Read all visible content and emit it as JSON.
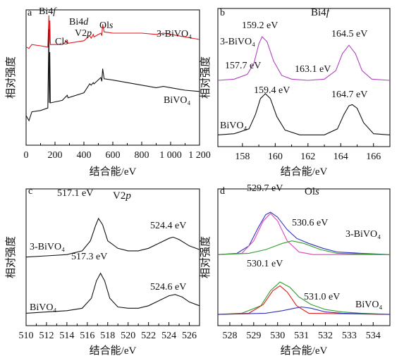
{
  "chart_data": [
    {
      "panel": "a",
      "type": "line",
      "xlabel": "结合能/eV",
      "ylabel": "相对强度",
      "xlim": [
        0,
        1200
      ],
      "xticks": [
        "0",
        "200",
        "400",
        "600",
        "800",
        "1 000",
        "1 200"
      ],
      "annotations": [
        {
          "text": "Bi4f",
          "x": 160
        },
        {
          "text": "Cls",
          "x": 285
        },
        {
          "text": "Bi4d",
          "x": 440
        },
        {
          "text": "V2p",
          "x": 517
        },
        {
          "text": "Ols",
          "x": 530
        }
      ],
      "series": [
        {
          "name": "3-BiVO₄",
          "color": "#e0191d",
          "points": [
            [
              0,
              0.74
            ],
            [
              20,
              0.73
            ],
            [
              40,
              0.76
            ],
            [
              100,
              0.75
            ],
            [
              150,
              0.74
            ],
            [
              158,
              0.99
            ],
            [
              160,
              0.77
            ],
            [
              164,
              0.95
            ],
            [
              168,
              0.76
            ],
            [
              250,
              0.76
            ],
            [
              285,
              0.79
            ],
            [
              290,
              0.77
            ],
            [
              400,
              0.79
            ],
            [
              440,
              0.83
            ],
            [
              450,
              0.81
            ],
            [
              465,
              0.84
            ],
            [
              470,
              0.82
            ],
            [
              517,
              0.85
            ],
            [
              524,
              0.83
            ],
            [
              530,
              0.92
            ],
            [
              540,
              0.86
            ],
            [
              600,
              0.85
            ],
            [
              700,
              0.85
            ],
            [
              800,
              0.85
            ],
            [
              900,
              0.84
            ],
            [
              950,
              0.85
            ],
            [
              1000,
              0.84
            ],
            [
              1100,
              0.82
            ],
            [
              1200,
              0.8
            ]
          ]
        },
        {
          "name": "BiVO₄",
          "color": "#111111",
          "points": [
            [
              0,
              0.2
            ],
            [
              20,
              0.16
            ],
            [
              40,
              0.23
            ],
            [
              100,
              0.24
            ],
            [
              150,
              0.26
            ],
            [
              158,
              0.88
            ],
            [
              160,
              0.3
            ],
            [
              164,
              0.7
            ],
            [
              168,
              0.3
            ],
            [
              250,
              0.32
            ],
            [
              285,
              0.36
            ],
            [
              290,
              0.34
            ],
            [
              400,
              0.38
            ],
            [
              440,
              0.45
            ],
            [
              450,
              0.44
            ],
            [
              465,
              0.46
            ],
            [
              470,
              0.45
            ],
            [
              517,
              0.5
            ],
            [
              524,
              0.47
            ],
            [
              530,
              0.57
            ],
            [
              540,
              0.49
            ],
            [
              600,
              0.48
            ],
            [
              700,
              0.46
            ],
            [
              800,
              0.44
            ],
            [
              900,
              0.42
            ],
            [
              950,
              0.43
            ],
            [
              1000,
              0.42
            ],
            [
              1100,
              0.4
            ],
            [
              1200,
              0.39
            ]
          ]
        }
      ]
    },
    {
      "panel": "b",
      "type": "line",
      "title": "Bi4f",
      "xlabel": "结合能/eV",
      "ylabel": "相对强度",
      "xlim": [
        156.5,
        167
      ],
      "xticks": [
        "158",
        "160",
        "162",
        "164",
        "166"
      ],
      "annotations": [
        {
          "text": "159.2 eV",
          "x": 159.2
        },
        {
          "text": "164.5 eV",
          "x": 164.5
        },
        {
          "text": "157.7 eV",
          "x": 157.7
        },
        {
          "text": "163.1 eV",
          "x": 163.1
        },
        {
          "text": "159.4 eV",
          "x": 159.4
        },
        {
          "text": "164.7 eV",
          "x": 164.7
        }
      ],
      "series": [
        {
          "name": "3-BiVO₄",
          "color": "#b040c0",
          "points": [
            [
              156.5,
              0.5
            ],
            [
              157.5,
              0.51
            ],
            [
              158.3,
              0.55
            ],
            [
              158.7,
              0.64
            ],
            [
              159.0,
              0.8
            ],
            [
              159.2,
              0.86
            ],
            [
              159.5,
              0.82
            ],
            [
              159.9,
              0.66
            ],
            [
              160.4,
              0.54
            ],
            [
              161.0,
              0.51
            ],
            [
              162.0,
              0.5
            ],
            [
              163.0,
              0.51
            ],
            [
              163.7,
              0.58
            ],
            [
              164.1,
              0.72
            ],
            [
              164.5,
              0.79
            ],
            [
              164.9,
              0.72
            ],
            [
              165.3,
              0.58
            ],
            [
              165.9,
              0.51
            ],
            [
              167.0,
              0.5
            ]
          ]
        },
        {
          "name": "BiVO₄",
          "color": "#111111",
          "points": [
            [
              156.5,
              0.05
            ],
            [
              157.5,
              0.06
            ],
            [
              158.4,
              0.1
            ],
            [
              158.8,
              0.22
            ],
            [
              159.1,
              0.35
            ],
            [
              159.4,
              0.39
            ],
            [
              159.7,
              0.35
            ],
            [
              160.1,
              0.2
            ],
            [
              160.6,
              0.09
            ],
            [
              161.5,
              0.05
            ],
            [
              163.0,
              0.05
            ],
            [
              163.8,
              0.1
            ],
            [
              164.2,
              0.22
            ],
            [
              164.5,
              0.29
            ],
            [
              164.7,
              0.3
            ],
            [
              165.0,
              0.27
            ],
            [
              165.4,
              0.15
            ],
            [
              166.0,
              0.06
            ],
            [
              167.0,
              0.05
            ]
          ]
        }
      ]
    },
    {
      "panel": "c",
      "type": "line",
      "title": "V2p",
      "xlabel": "结合能/eV",
      "ylabel": "相对强度",
      "xlim": [
        510,
        527
      ],
      "xticks": [
        "510",
        "512",
        "514",
        "516",
        "518",
        "520",
        "522",
        "524",
        "526"
      ],
      "annotations": [
        {
          "text": "517.1 eV",
          "x": 517.1
        },
        {
          "text": "524.4 eV",
          "x": 524.4
        },
        {
          "text": "517.3 eV",
          "x": 517.3
        },
        {
          "text": "524.6 eV",
          "x": 524.6
        }
      ],
      "series": [
        {
          "name": "3-BiVO₄",
          "color": "#111111",
          "points": [
            [
              510,
              0.51
            ],
            [
              512,
              0.52
            ],
            [
              514,
              0.53
            ],
            [
              515.5,
              0.56
            ],
            [
              516.3,
              0.64
            ],
            [
              516.8,
              0.76
            ],
            [
              517.1,
              0.82
            ],
            [
              517.5,
              0.77
            ],
            [
              518.0,
              0.64
            ],
            [
              519.0,
              0.58
            ],
            [
              520.0,
              0.56
            ],
            [
              521.0,
              0.56
            ],
            [
              522.0,
              0.58
            ],
            [
              523.0,
              0.62
            ],
            [
              524.0,
              0.66
            ],
            [
              524.4,
              0.67
            ],
            [
              525.0,
              0.65
            ],
            [
              526.0,
              0.6
            ],
            [
              527,
              0.57
            ]
          ]
        },
        {
          "name": "BiVO₄",
          "color": "#111111",
          "points": [
            [
              510,
              0.06
            ],
            [
              512,
              0.07
            ],
            [
              514,
              0.08
            ],
            [
              515.5,
              0.1
            ],
            [
              516.4,
              0.18
            ],
            [
              516.9,
              0.32
            ],
            [
              517.3,
              0.38
            ],
            [
              517.7,
              0.32
            ],
            [
              518.2,
              0.18
            ],
            [
              519.0,
              0.11
            ],
            [
              520.0,
              0.1
            ],
            [
              521.0,
              0.1
            ],
            [
              522.0,
              0.12
            ],
            [
              523.0,
              0.16
            ],
            [
              524.0,
              0.2
            ],
            [
              524.6,
              0.21
            ],
            [
              525.3,
              0.19
            ],
            [
              526.0,
              0.15
            ],
            [
              527,
              0.12
            ]
          ]
        }
      ]
    },
    {
      "panel": "d",
      "type": "line",
      "title": "Ols",
      "xlabel": "结合能/eV",
      "ylabel": "相对强度",
      "xlim": [
        527.5,
        534.7
      ],
      "xticks": [
        "528",
        "529",
        "530",
        "531",
        "532",
        "533",
        "534"
      ],
      "annotations": [
        {
          "text": "529.7 eV",
          "x": 529.7
        },
        {
          "text": "530.6 eV",
          "x": 530.6
        },
        {
          "text": "530.1 eV",
          "x": 530.1
        },
        {
          "text": "531.0 eV",
          "x": 531.0
        }
      ],
      "series": [
        {
          "name": "3-BiVO₄",
          "color": "#3030c0",
          "points": [
            [
              527.5,
              0.53
            ],
            [
              528.3,
              0.54
            ],
            [
              528.8,
              0.6
            ],
            [
              529.2,
              0.75
            ],
            [
              529.5,
              0.85
            ],
            [
              529.7,
              0.87
            ],
            [
              530.0,
              0.83
            ],
            [
              530.4,
              0.73
            ],
            [
              530.8,
              0.66
            ],
            [
              531.3,
              0.62
            ],
            [
              531.9,
              0.58
            ],
            [
              532.5,
              0.55
            ],
            [
              533.5,
              0.54
            ],
            [
              534.7,
              0.53
            ]
          ]
        },
        {
          "name": "3-BiVO₄ (fit 529.7 eV)",
          "color": "#e040c0",
          "points": [
            [
              527.5,
              0.53
            ],
            [
              528.5,
              0.54
            ],
            [
              529.0,
              0.64
            ],
            [
              529.4,
              0.8
            ],
            [
              529.7,
              0.86
            ],
            [
              530.0,
              0.8
            ],
            [
              530.4,
              0.64
            ],
            [
              530.9,
              0.55
            ],
            [
              531.5,
              0.53
            ],
            [
              534.7,
              0.53
            ]
          ]
        },
        {
          "name": "3-BiVO₄ (fit 530.6 eV)",
          "color": "#30a030",
          "points": [
            [
              527.5,
              0.53
            ],
            [
              528.8,
              0.54
            ],
            [
              529.5,
              0.57
            ],
            [
              530.2,
              0.62
            ],
            [
              530.6,
              0.64
            ],
            [
              531.1,
              0.62
            ],
            [
              531.8,
              0.57
            ],
            [
              532.5,
              0.54
            ],
            [
              534.7,
              0.53
            ]
          ]
        },
        {
          "name": "BiVO₄",
          "color": "#30a030",
          "points": [
            [
              527.5,
              0.05
            ],
            [
              528.5,
              0.06
            ],
            [
              529.3,
              0.12
            ],
            [
              529.7,
              0.24
            ],
            [
              530.1,
              0.31
            ],
            [
              530.5,
              0.27
            ],
            [
              530.9,
              0.19
            ],
            [
              531.4,
              0.13
            ],
            [
              532.0,
              0.09
            ],
            [
              532.7,
              0.07
            ],
            [
              533.5,
              0.06
            ],
            [
              534.7,
              0.05
            ]
          ]
        },
        {
          "name": "BiVO₄ (fit 530.1 eV)",
          "color": "#e02020",
          "points": [
            [
              527.5,
              0.05
            ],
            [
              528.8,
              0.06
            ],
            [
              529.4,
              0.13
            ],
            [
              529.8,
              0.24
            ],
            [
              530.1,
              0.28
            ],
            [
              530.4,
              0.23
            ],
            [
              530.8,
              0.12
            ],
            [
              531.3,
              0.06
            ],
            [
              534.7,
              0.05
            ]
          ]
        },
        {
          "name": "BiVO₄ (fit 531.0 eV)",
          "color": "#3030c0",
          "points": [
            [
              527.5,
              0.05
            ],
            [
              529.5,
              0.06
            ],
            [
              530.2,
              0.08
            ],
            [
              530.7,
              0.1
            ],
            [
              531.0,
              0.11
            ],
            [
              531.4,
              0.1
            ],
            [
              532.0,
              0.07
            ],
            [
              532.7,
              0.06
            ],
            [
              534.7,
              0.05
            ]
          ]
        }
      ]
    }
  ]
}
